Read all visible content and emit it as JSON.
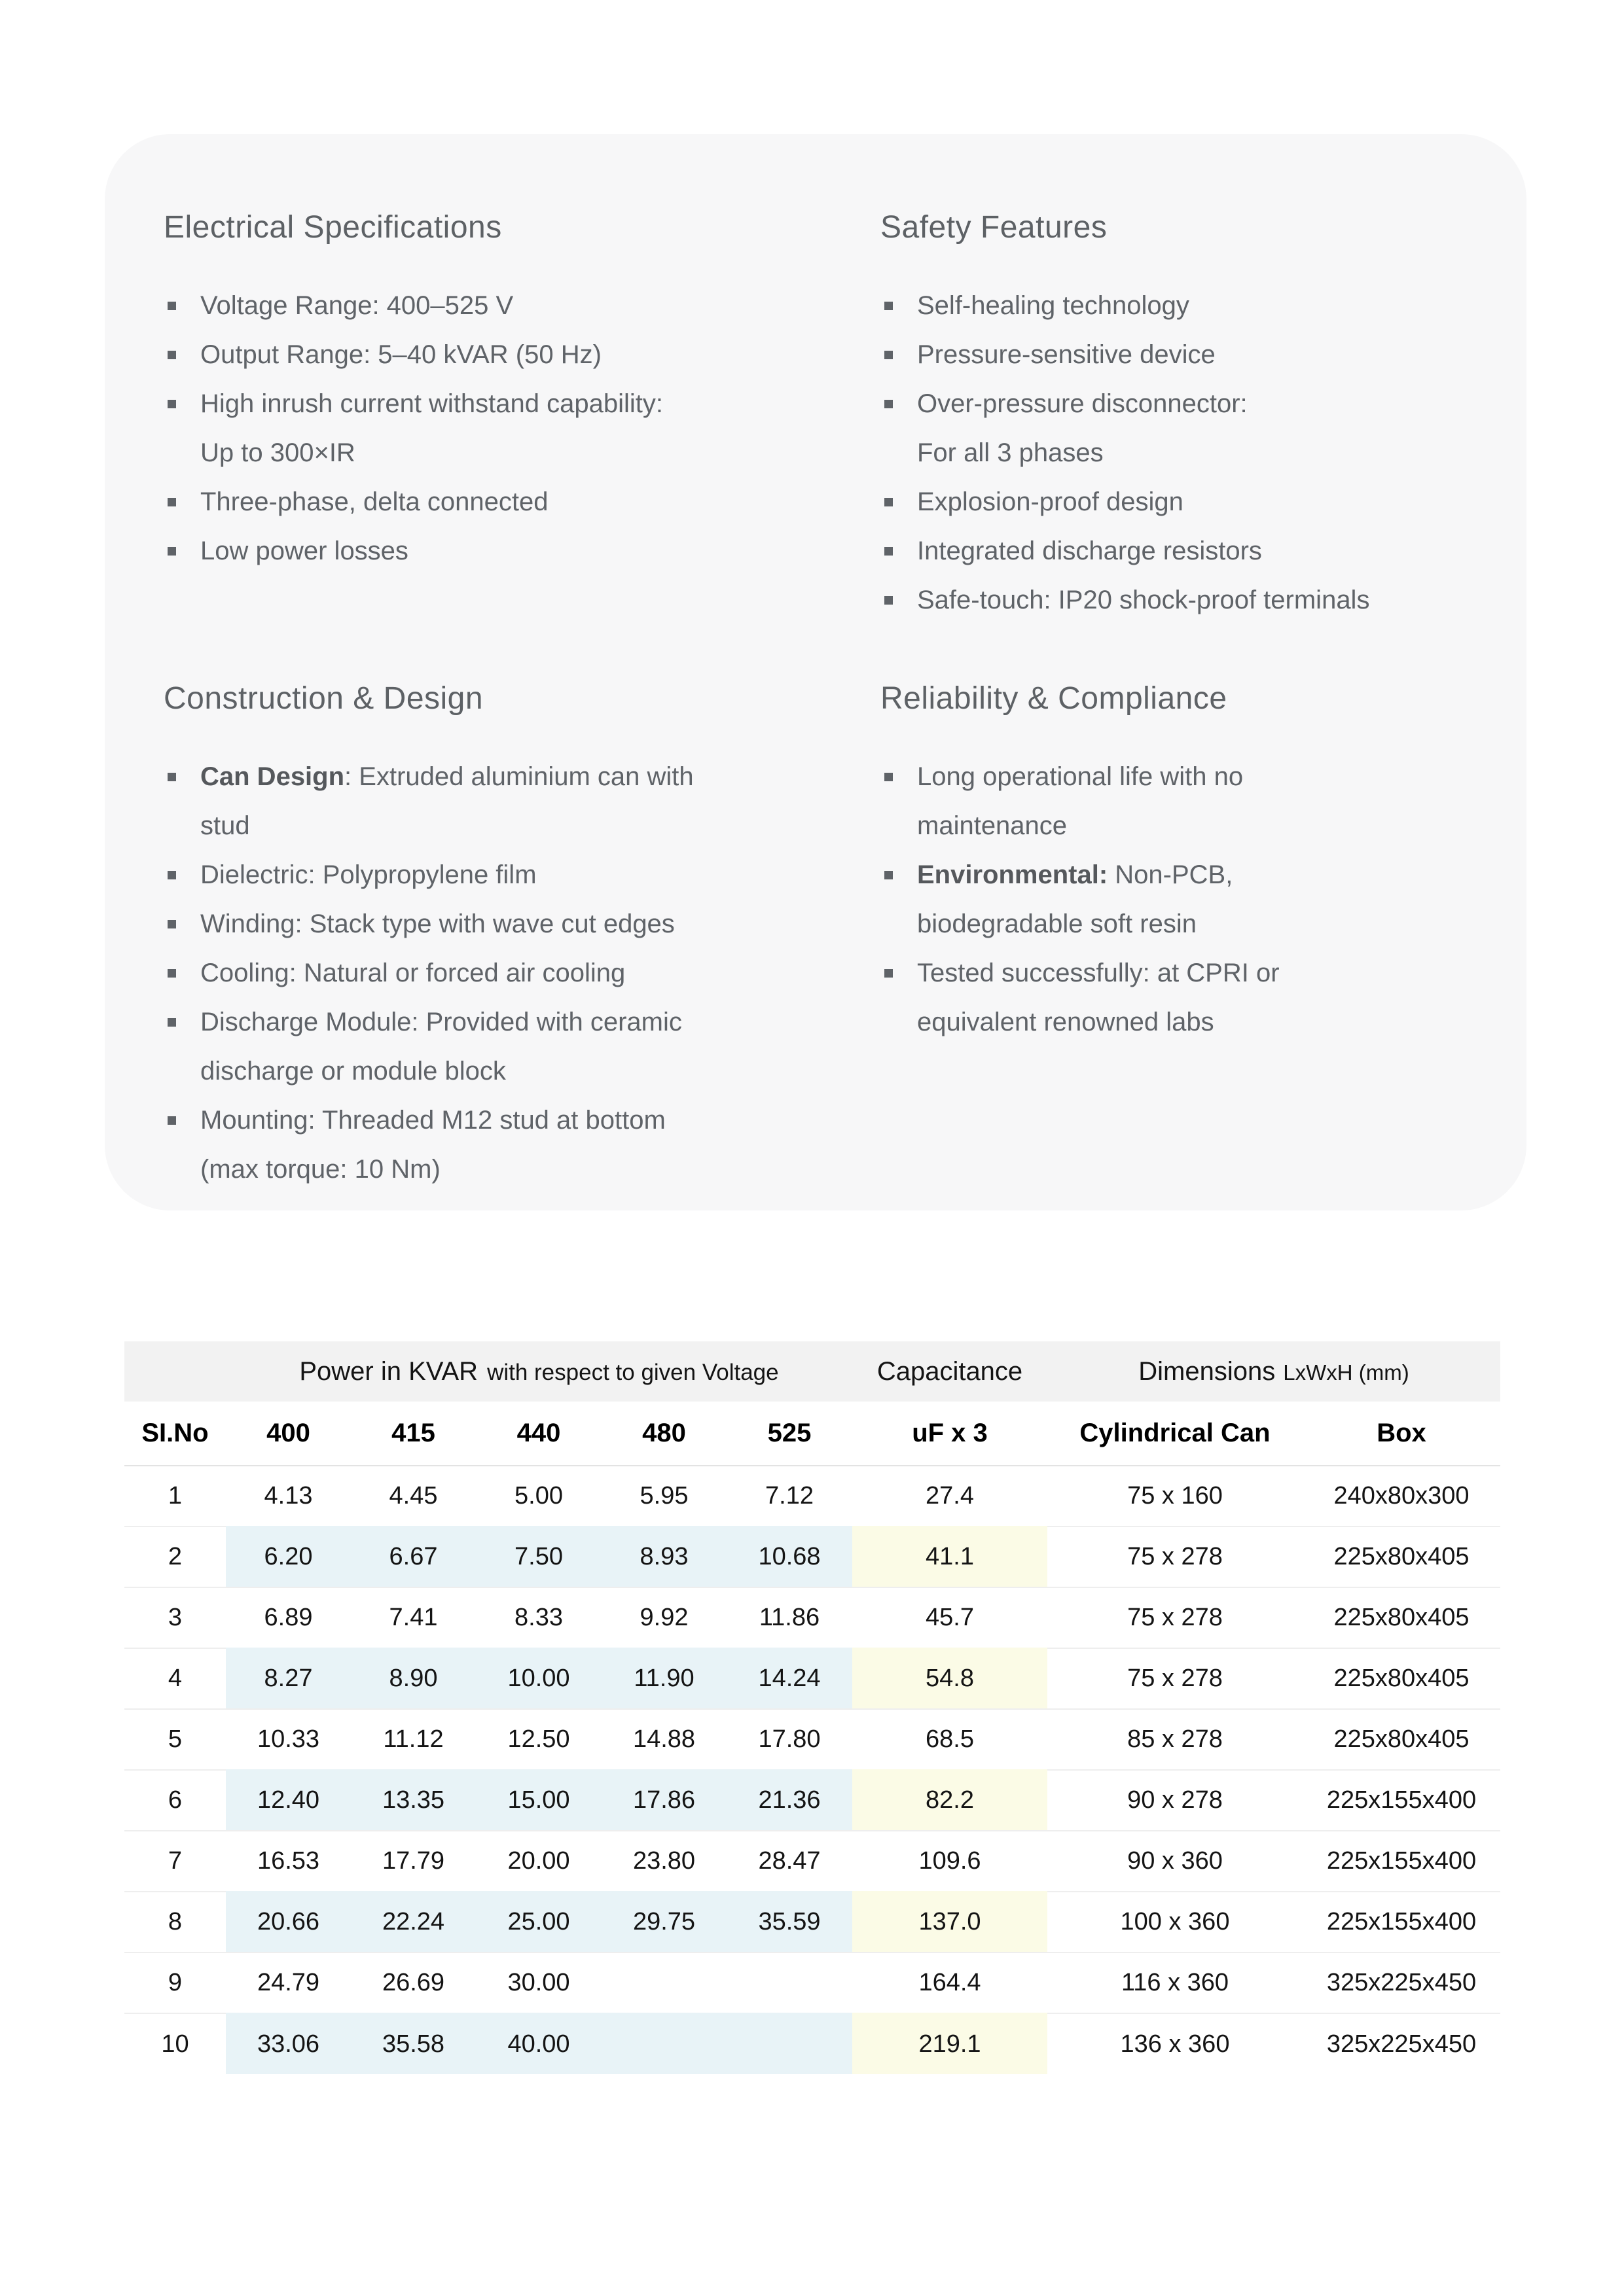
{
  "card": {
    "background": "#f7f7f8",
    "sections": [
      {
        "title": "Electrical Specifications",
        "items": [
          {
            "text": "Voltage Range: 400–525 V"
          },
          {
            "text": "Output Range: 5–40 kVAR (50 Hz)"
          },
          {
            "text": "High inrush current withstand capability:\nUp to 300×IR"
          },
          {
            "text": "Three-phase, delta connected"
          },
          {
            "text": "Low power losses"
          }
        ]
      },
      {
        "title": "Safety Features",
        "items": [
          {
            "text": "Self-healing technology"
          },
          {
            "text": "Pressure-sensitive device"
          },
          {
            "text": "Over-pressure disconnector:\nFor all 3 phases"
          },
          {
            "text": "Explosion-proof design"
          },
          {
            "text": "Integrated discharge resistors"
          },
          {
            "text": "Safe-touch: IP20 shock-proof terminals"
          }
        ]
      },
      {
        "title": "Construction & Design",
        "items": [
          {
            "strong": "Can Design",
            "rest": ": Extruded aluminium can with\nstud"
          },
          {
            "text": "Dielectric: Polypropylene film"
          },
          {
            "text": "Winding: Stack type with wave cut edges"
          },
          {
            "text": "Cooling: Natural or forced air cooling"
          },
          {
            "text": "Discharge Module: Provided with ceramic\ndischarge or module block"
          },
          {
            "text": "Mounting: Threaded M12 stud at bottom\n(max torque: 10 Nm)"
          }
        ]
      },
      {
        "title": "Reliability & Compliance",
        "items": [
          {
            "text": "Long operational life with no\nmaintenance"
          },
          {
            "strong": "Environmental:",
            "rest": " Non-PCB,\nbiodegradable soft resin"
          },
          {
            "text": "Tested successfully: at CPRI or\nequivalent renowned labs"
          }
        ]
      }
    ]
  },
  "table": {
    "group_header": {
      "power_title": "Power in KVAR",
      "power_subtitle": "with respect to given Voltage",
      "capacitance": "Capacitance",
      "dimensions": "Dimensions",
      "dimensions_unit": "LxWxH (mm)"
    },
    "columns": [
      "SI.No",
      "400",
      "415",
      "440",
      "480",
      "525",
      "uF x 3",
      "Cylindrical Can",
      "Box"
    ],
    "rows": [
      {
        "si": "1",
        "values": [
          "4.13",
          "4.45",
          "5.00",
          "5.95",
          "7.12"
        ],
        "uf": "27.4",
        "can": "75 x 160",
        "box": "240x80x300",
        "highlighted": false
      },
      {
        "si": "2",
        "values": [
          "6.20",
          "6.67",
          "7.50",
          "8.93",
          "10.68"
        ],
        "uf": "41.1",
        "can": "75 x 278",
        "box": "225x80x405",
        "highlighted": true
      },
      {
        "si": "3",
        "values": [
          "6.89",
          "7.41",
          "8.33",
          "9.92",
          "11.86"
        ],
        "uf": "45.7",
        "can": "75 x 278",
        "box": "225x80x405",
        "highlighted": false
      },
      {
        "si": "4",
        "values": [
          "8.27",
          "8.90",
          "10.00",
          "11.90",
          "14.24"
        ],
        "uf": "54.8",
        "can": "75 x 278",
        "box": "225x80x405",
        "highlighted": true
      },
      {
        "si": "5",
        "values": [
          "10.33",
          "11.12",
          "12.50",
          "14.88",
          "17.80"
        ],
        "uf": "68.5",
        "can": "85 x 278",
        "box": "225x80x405",
        "highlighted": false
      },
      {
        "si": "6",
        "values": [
          "12.40",
          "13.35",
          "15.00",
          "17.86",
          "21.36"
        ],
        "uf": "82.2",
        "can": "90 x 278",
        "box": "225x155x400",
        "highlighted": true
      },
      {
        "si": "7",
        "values": [
          "16.53",
          "17.79",
          "20.00",
          "23.80",
          "28.47"
        ],
        "uf": "109.6",
        "can": "90 x 360",
        "box": "225x155x400",
        "highlighted": false
      },
      {
        "si": "8",
        "values": [
          "20.66",
          "22.24",
          "25.00",
          "29.75",
          "35.59"
        ],
        "uf": "137.0",
        "can": "100 x 360",
        "box": "225x155x400",
        "highlighted": true
      },
      {
        "si": "9",
        "values": [
          "24.79",
          "26.69",
          "30.00",
          "",
          ""
        ],
        "uf": "164.4",
        "can": "116 x 360",
        "box": "325x225x450",
        "highlighted": false
      },
      {
        "si": "10",
        "values": [
          "33.06",
          "35.58",
          "40.00",
          "",
          ""
        ],
        "uf": "219.1",
        "can": "136 x 360",
        "box": "325x225x450",
        "highlighted": true
      }
    ],
    "colors": {
      "header_band": "#f2f2f2",
      "highlight_blue": "#e8f3f7",
      "highlight_yellow": "#fbfbe6"
    }
  }
}
